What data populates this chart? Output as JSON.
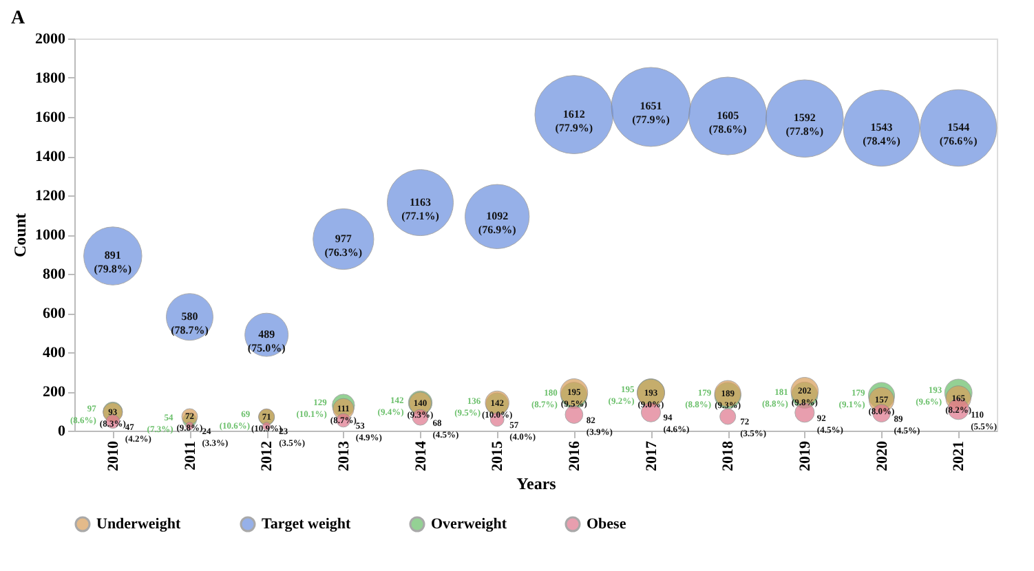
{
  "chart_data": {
    "type": "bubble",
    "annotations": [
      "A"
    ],
    "xlabel": "Years",
    "ylabel": "Count",
    "categories": [
      "2010",
      "2011",
      "2012",
      "2013",
      "2014",
      "2015",
      "2016",
      "2017",
      "2018",
      "2019",
      "2020",
      "2021"
    ],
    "ylim": [
      0,
      2000
    ],
    "yticks": [
      0,
      200,
      400,
      600,
      800,
      1000,
      1200,
      1400,
      1600,
      1800,
      2000
    ],
    "grid": false,
    "legend": "bottom",
    "series": [
      {
        "name": "Underweight",
        "color": "#d9a05e",
        "values": [
          93,
          72,
          71,
          111,
          140,
          142,
          195,
          193,
          189,
          202,
          157,
          165
        ],
        "sizes": [
          0.06,
          0.04,
          0.04,
          0.07,
          0.08,
          0.09,
          0.12,
          0.12,
          0.11,
          0.12,
          0.1,
          0.1
        ],
        "value_labels": [
          "93 (8.3%)",
          "72 (9.8%)",
          "71 (10.9%)",
          "111 (8.7%)",
          "140 (9.3%)",
          "142 (10.0%)",
          "195 (9.5%)",
          "193 (9.0%)",
          "189 (9.3%)",
          "202 (9.8%)",
          "157 (8.0%)",
          "165 (8.2%)"
        ]
      },
      {
        "name": "Target weight",
        "color": "#6f93e0",
        "values": [
          891,
          580,
          489,
          977,
          1163,
          1092,
          1612,
          1651,
          1605,
          1592,
          1543,
          1544
        ],
        "sizes": [
          0.54,
          0.35,
          0.3,
          0.59,
          0.7,
          0.66,
          0.98,
          1,
          0.97,
          0.96,
          0.93,
          0.94
        ],
        "value_labels": [
          "891 (79.8%)",
          "580 (78.7%)",
          "489 (75.0%)",
          "977 (76.3%)",
          "1163 (77.1%)",
          "1092 (76.9%)",
          "1612 (77.9%)",
          "1651 (77.9%)",
          "1605 (78.6%)",
          "1592 (77.8%)",
          "1543 (78.4%)",
          "1544 (76.6%)"
        ]
      },
      {
        "name": "Overweight",
        "color": "#6cc06c",
        "values": [
          97,
          54,
          69,
          129,
          142,
          136,
          180,
          195,
          179,
          181,
          179,
          193
        ],
        "sizes": [
          0.06,
          0.03,
          0.04,
          0.08,
          0.09,
          0.08,
          0.11,
          0.12,
          0.11,
          0.11,
          0.11,
          0.12
        ],
        "value_labels": [
          "97 (8.6%)",
          "54 (7.3%)",
          "69 (10.6%)",
          "129 (10.1%)",
          "142 (9.4%)",
          "136 (9.5%)",
          "180 (8.7%)",
          "195 (9.2%)",
          "179 (8.8%)",
          "181 (8.8%)",
          "179 (9.1%)",
          "193 (9.6%)"
        ]
      },
      {
        "name": "Obese",
        "color": "#e07a90",
        "values": [
          47,
          24,
          23,
          53,
          68,
          57,
          82,
          94,
          72,
          92,
          89,
          110
        ],
        "sizes": [
          0.03,
          0.01,
          0.01,
          0.03,
          0.04,
          0.03,
          0.05,
          0.06,
          0.04,
          0.06,
          0.05,
          0.07
        ],
        "value_labels": [
          "47 (4.2%)",
          "24 (3.3%)",
          "23 (3.5%)",
          "53 (4.9%)",
          "68 (4.5%)",
          "57 (4.0%)",
          "82 (3.9%)",
          "94 (4.6%)",
          "72 (3.5%)",
          "92 (4.5%)",
          "89 (4.5%)",
          "110 (5.5%)"
        ]
      }
    ]
  }
}
